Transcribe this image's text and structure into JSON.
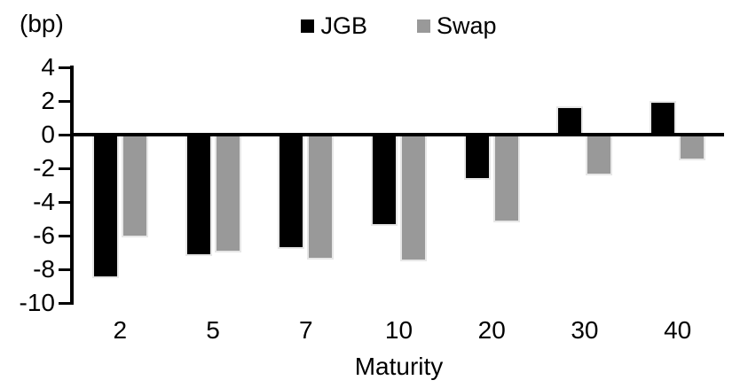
{
  "chart_data": {
    "type": "bar",
    "title": "",
    "unit_label": "(bp)",
    "xlabel": "Maturity",
    "categories": [
      "2",
      "5",
      "7",
      "10",
      "20",
      "30",
      "40"
    ],
    "series": [
      {
        "name": "JGB",
        "color": "#000000",
        "values": [
          -8.5,
          -7.2,
          -6.8,
          -5.4,
          -2.7,
          1.7,
          2.0
        ]
      },
      {
        "name": "Swap",
        "color": "#999999",
        "values": [
          -6.1,
          -7.0,
          -7.4,
          -7.5,
          -5.2,
          -2.4,
          -1.5
        ]
      }
    ],
    "y_ticks": [
      4,
      2,
      0,
      -2,
      -4,
      -6,
      -8,
      -10
    ],
    "ylim": [
      -10,
      4
    ],
    "legend_position": "top-center",
    "grid": false
  }
}
